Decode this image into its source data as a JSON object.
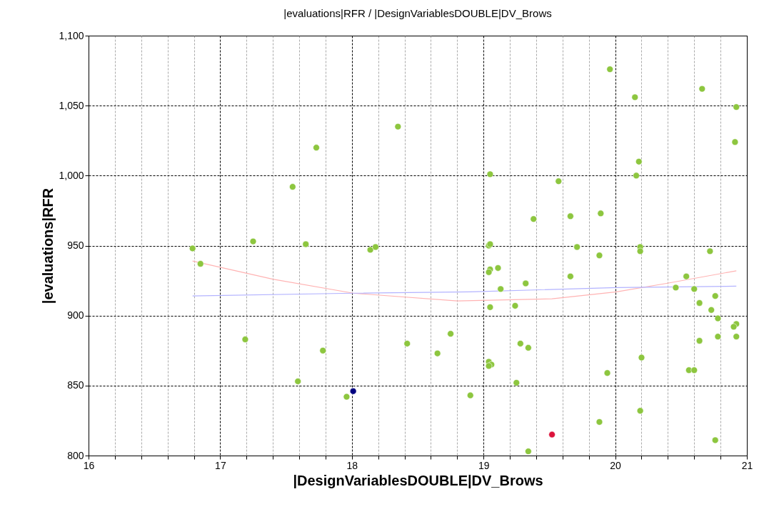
{
  "chart_data": {
    "type": "scatter",
    "title": "|evaluations|RFR / |DesignVariablesDOUBLE|DV_Brows",
    "xlabel": "|DesignVariablesDOUBLE|DV_Brows",
    "ylabel": "|evaluations|RFR",
    "xlim": [
      16,
      21
    ],
    "ylim": [
      800,
      1100
    ],
    "xticks": [
      16,
      {
        "value": 16.2,
        "label": null
      },
      {
        "value": 16.4,
        "label": null
      },
      {
        "value": 16.6,
        "label": null
      },
      {
        "value": 16.8,
        "label": null
      },
      17,
      {
        "value": 17.2,
        "label": null
      },
      {
        "value": 17.4,
        "label": null
      },
      {
        "value": 17.6,
        "label": null
      },
      {
        "value": 17.8,
        "label": null
      },
      18,
      {
        "value": 18.2,
        "label": null
      },
      {
        "value": 18.4,
        "label": null
      },
      {
        "value": 18.6,
        "label": null
      },
      {
        "value": 18.8,
        "label": null
      },
      19,
      {
        "value": 19.2,
        "label": null
      },
      {
        "value": 19.4,
        "label": null
      },
      {
        "value": 19.6,
        "label": null
      },
      {
        "value": 19.8,
        "label": null
      },
      20,
      {
        "value": 20.2,
        "label": null
      },
      {
        "value": 20.4,
        "label": null
      },
      {
        "value": 20.6,
        "label": null
      },
      {
        "value": 20.8,
        "label": null
      },
      21
    ],
    "yticks": [
      800,
      850,
      900,
      950,
      {
        "value": 1000,
        "label": "1,000"
      },
      {
        "value": 1050,
        "label": "1,050"
      },
      {
        "value": 1100,
        "label": "1,100"
      }
    ],
    "grid": true,
    "series": [
      {
        "marker": "circle",
        "color": "#8dc63f",
        "x": [
          16.79,
          16.85,
          17.25,
          17.65,
          18.14,
          18.18,
          17.19,
          17.78,
          17.59,
          18.42,
          18.65,
          18.75,
          17.96,
          18.9,
          18.35,
          17.73,
          17.55,
          19.96,
          20.15,
          20.66,
          20.92,
          20.91,
          20.18,
          20.16,
          19.05,
          19.57,
          19.38,
          19.66,
          19.89,
          19.04,
          19.05,
          19.71,
          20.19,
          20.19,
          20.72,
          19.88,
          19.05,
          19.04,
          19.11,
          19.66,
          19.32,
          19.13,
          20.54,
          20.46,
          20.6,
          20.76,
          19.05,
          19.24,
          20.64,
          20.73,
          20.78,
          20.92,
          20.9,
          20.64,
          20.78,
          20.92,
          19.28,
          19.34,
          19.04,
          19.06,
          19.04,
          20.2,
          19.94,
          20.56,
          20.6,
          19.25,
          20.19,
          19.88,
          20.76,
          19.34
        ],
        "values": [
          948,
          937,
          953,
          951,
          947,
          949,
          883,
          875,
          853,
          880,
          873,
          887,
          842,
          843,
          1035,
          1020,
          992,
          1076,
          1056,
          1062,
          1049,
          1024,
          1010,
          1000,
          1001,
          996,
          969,
          971,
          973,
          950,
          951,
          949,
          949,
          946,
          946,
          943,
          933,
          931,
          934,
          928,
          923,
          919,
          928,
          920,
          919,
          914,
          906,
          907,
          909,
          904,
          898,
          894,
          892,
          882,
          885,
          885,
          880,
          877,
          867,
          865,
          864,
          870,
          859,
          861,
          861,
          852,
          832,
          824,
          811,
          803
        ]
      },
      {
        "marker": "circle",
        "color": "#000080",
        "x": [
          18.01
        ],
        "values": [
          846
        ]
      },
      {
        "marker": "circle",
        "color": "#dc143c",
        "x": [
          19.52
        ],
        "values": [
          815
        ]
      },
      {
        "type": "line",
        "marker": "none",
        "color": "#ffb3b3",
        "x": [
          16.79,
          17.4,
          18.01,
          18.8,
          19.52,
          20.01,
          20.39,
          20.92
        ],
        "values": [
          939,
          926,
          916,
          910.5,
          912,
          917,
          923,
          932
        ]
      },
      {
        "type": "line",
        "marker": "none",
        "color": "#b3b3ff",
        "x": [
          16.79,
          18.01,
          18.9,
          20.01,
          20.92
        ],
        "values": [
          914,
          916,
          917,
          920,
          921
        ]
      }
    ]
  }
}
